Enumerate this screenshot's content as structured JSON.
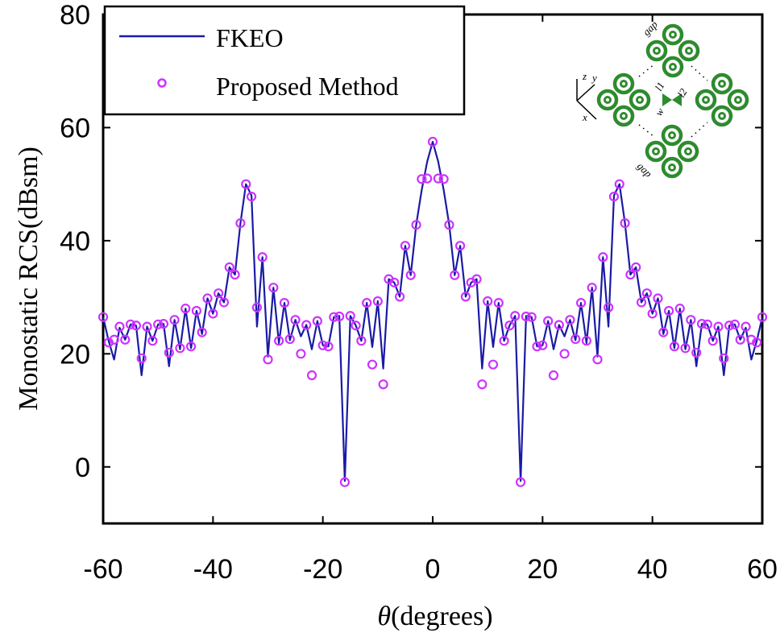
{
  "chart_data": {
    "type": "line",
    "title": "",
    "xlabel_symbol": "θ",
    "xlabel": "(degrees)",
    "ylabel": "Monostatic RCS(dBsm)",
    "xlim": [
      -60,
      60
    ],
    "ylim": [
      -10,
      80
    ],
    "xticks": [
      -60,
      -40,
      -20,
      0,
      20,
      40,
      60
    ],
    "xtick_labels": [
      "-60",
      "-40",
      "-20",
      "0",
      "20",
      "40",
      "60"
    ],
    "yticks": [
      0,
      20,
      40,
      60,
      80
    ],
    "ytick_labels": [
      "0",
      "20",
      "40",
      "60",
      "80"
    ],
    "grid": false,
    "legend": {
      "placement": "top-left",
      "entries": [
        {
          "label": "FKEO",
          "style": "line",
          "color": "#1a1aa6"
        },
        {
          "label": "Proposed Method",
          "style": "circle-marker",
          "color": "#cc33ff"
        }
      ]
    },
    "x": [
      -60,
      -59,
      -58,
      -57,
      -56,
      -55,
      -54,
      -53,
      -52,
      -51,
      -50,
      -49,
      -48,
      -47,
      -46,
      -45,
      -44,
      -43,
      -42,
      -41,
      -40,
      -39,
      -38,
      -37,
      -36,
      -35,
      -34,
      -33,
      -32,
      -31,
      -30,
      -29,
      -28,
      -27,
      -26,
      -25,
      -24,
      -23,
      -22,
      -21,
      -20,
      -19,
      -18,
      -17,
      -16,
      -15,
      -14,
      -13,
      -12,
      -11,
      -10,
      -9,
      -8,
      -7,
      -6,
      -5,
      -4,
      -3,
      -2,
      -1,
      0,
      1,
      2,
      3,
      4,
      5,
      6,
      7,
      8,
      9,
      10,
      11,
      12,
      13,
      14,
      15,
      16,
      17,
      18,
      19,
      20,
      21,
      22,
      23,
      24,
      25,
      26,
      27,
      28,
      29,
      30,
      31,
      32,
      33,
      34,
      35,
      36,
      37,
      38,
      39,
      40,
      41,
      42,
      43,
      44,
      45,
      46,
      47,
      48,
      49,
      50,
      51,
      52,
      53,
      54,
      55,
      56,
      57,
      58,
      59,
      60
    ],
    "series": [
      {
        "name": "FKEO",
        "style": "line",
        "color": "#1a1aa6",
        "values": [
          26.5,
          22.3,
          19.0,
          24.6,
          22.5,
          25.2,
          25.0,
          16.2,
          24.8,
          22.3,
          25.2,
          25.3,
          17.8,
          26.0,
          20.8,
          28.0,
          21.0,
          27.6,
          23.5,
          29.8,
          27.1,
          30.7,
          29.1,
          35.3,
          34.0,
          43.1,
          50.0,
          48.0,
          24.8,
          37.1,
          19.5,
          31.7,
          21.9,
          29.0,
          22.4,
          26.0,
          23.1,
          25.1,
          20.8,
          25.8,
          21.5,
          21.3,
          26.5,
          26.7,
          -2.5,
          26.7,
          25.0,
          22.3,
          29.0,
          21.2,
          29.3,
          17.4,
          33.2,
          32.6,
          30.1,
          39.1,
          33.9,
          42.8,
          49.0,
          54.0,
          57.5,
          54.0,
          49.0,
          42.8,
          33.9,
          39.1,
          30.1,
          32.6,
          33.2,
          17.4,
          29.3,
          21.2,
          29.0,
          22.3,
          25.0,
          26.7,
          -2.5,
          26.7,
          26.5,
          21.3,
          21.5,
          25.8,
          20.8,
          25.1,
          23.1,
          26.0,
          22.4,
          29.0,
          21.9,
          31.7,
          19.5,
          37.1,
          24.8,
          48.0,
          50.0,
          43.1,
          34.0,
          35.3,
          29.1,
          30.7,
          27.1,
          29.8,
          23.5,
          27.6,
          21.0,
          28.0,
          20.8,
          26.0,
          17.8,
          25.3,
          25.2,
          22.3,
          24.8,
          16.2,
          25.0,
          25.2,
          22.5,
          24.6,
          19.0,
          22.3,
          26.5
        ]
      },
      {
        "name": "Proposed Method",
        "style": "circle-marker",
        "color": "#cc33ff",
        "values": [
          26.5,
          22.0,
          22.5,
          24.8,
          22.5,
          25.2,
          25.0,
          19.2,
          24.8,
          22.3,
          25.2,
          25.3,
          20.2,
          26.0,
          21.0,
          28.0,
          21.3,
          27.6,
          23.8,
          29.8,
          27.1,
          30.7,
          29.1,
          35.3,
          34.0,
          43.1,
          50.0,
          47.8,
          28.2,
          37.1,
          19.0,
          31.7,
          22.3,
          29.0,
          22.6,
          26.0,
          20.0,
          25.1,
          16.2,
          25.8,
          21.5,
          21.3,
          26.5,
          26.6,
          -2.7,
          26.7,
          25.0,
          22.3,
          29.0,
          18.1,
          29.3,
          14.6,
          33.2,
          32.6,
          30.1,
          39.1,
          33.9,
          42.8,
          50.9,
          51.0,
          57.5,
          51.0,
          50.9,
          42.8,
          33.9,
          39.1,
          30.1,
          32.6,
          33.2,
          14.6,
          29.3,
          18.1,
          29.0,
          22.3,
          25.0,
          26.7,
          -2.7,
          26.6,
          26.5,
          21.3,
          21.5,
          25.8,
          16.2,
          25.1,
          20.0,
          26.0,
          22.6,
          29.0,
          22.3,
          31.7,
          19.0,
          37.1,
          28.2,
          47.8,
          50.0,
          43.1,
          34.0,
          35.3,
          29.1,
          30.7,
          27.1,
          29.8,
          23.8,
          27.6,
          21.3,
          28.0,
          21.0,
          26.0,
          20.2,
          25.3,
          25.2,
          22.3,
          24.8,
          19.2,
          25.0,
          25.2,
          22.5,
          24.8,
          22.5,
          22.0,
          26.5
        ]
      }
    ]
  },
  "inset": {
    "description": "array geometry diagram",
    "color": "#2e8b2e",
    "labels": {
      "gap_top": "gap",
      "gap_bottom": "gap",
      "l1": "l1",
      "l2": "l2",
      "w": "w",
      "axis_x": "x",
      "axis_y": "y",
      "axis_z": "z"
    }
  }
}
